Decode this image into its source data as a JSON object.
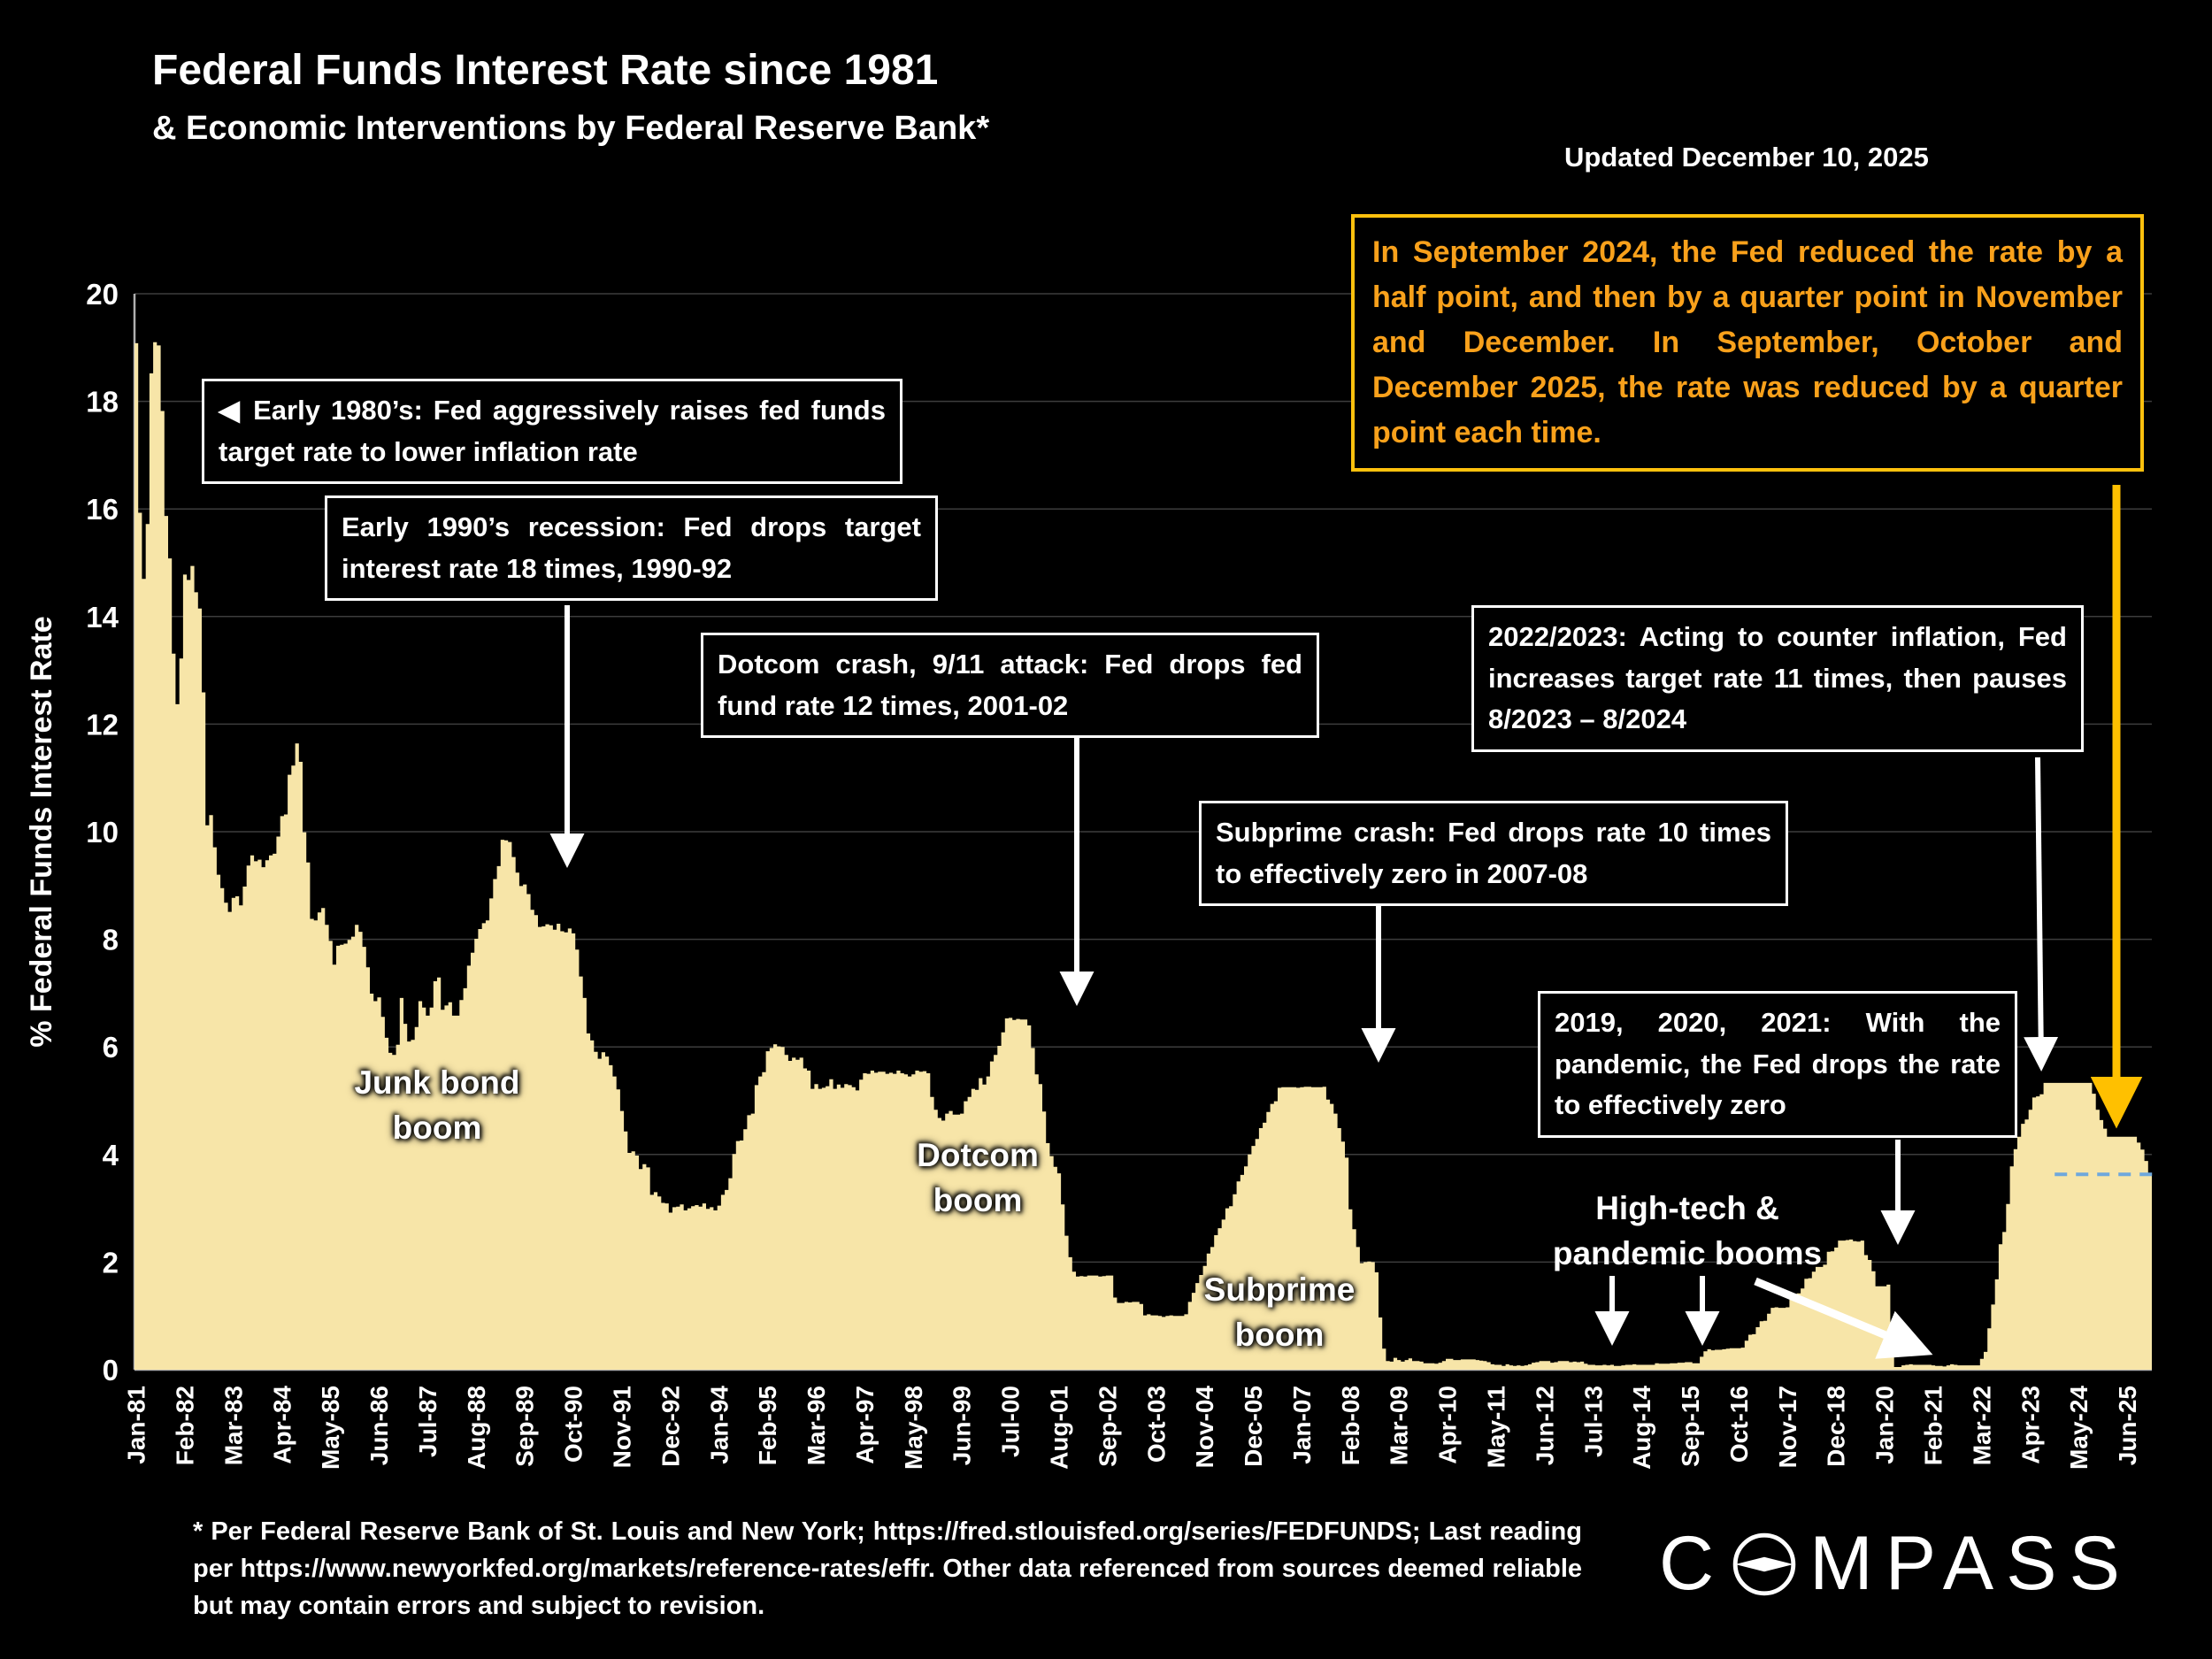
{
  "header": {
    "title": "Federal Funds Interest Rate since 1981",
    "subtitle": "& Economic Interventions by Federal Reserve Bank*",
    "updated": "Updated December 10, 2025"
  },
  "callout": {
    "text": "In September 2024, the Fed reduced the rate by a half point, and then by a quarter point in November and December. In September, October and December 2025, the rate was reduced by a quarter point each time."
  },
  "annotations": {
    "early80s": "◀ Early 1980’s: Fed aggressively raises fed funds target rate to lower inflation rate",
    "early90s": "Early 1990’s recession: Fed drops target interest rate 18 times, 1990-92",
    "dotcom_crash": "Dotcom crash, 9/11 attack: Fed drops fed fund rate 12 times, 2001-02",
    "inflation_2022": "2022/2023: Acting to counter inflation, Fed increases target rate 11 times, then pauses 8/2023 – 8/2024",
    "subprime_crash": "Subprime crash: Fed drops rate 10 times to effectively zero in 2007-08",
    "pandemic": "2019, 2020, 2021: With the pandemic, the Fed drops the rate to effectively zero"
  },
  "boom_labels": {
    "junk": [
      "Junk bond",
      "boom"
    ],
    "dotcom": [
      "Dotcom",
      "boom"
    ],
    "subprime": [
      "Subprime",
      "boom"
    ],
    "hightech": [
      "High-tech &",
      "pandemic booms"
    ]
  },
  "footer": {
    "disclaimer": "* Per Federal Reserve Bank of St. Louis and New York; https://fred.stlouisfed.org/series/FEDFUNDS; Last reading per https://www.newyorkfed.org/markets/reference-rates/effr. Other data referenced from sources deemed reliable but may contain errors and subject to revision."
  },
  "logo": {
    "name": "COMPASS",
    "pre": "C",
    "post": "MPASS"
  },
  "chart_data": {
    "type": "area",
    "title": "Federal Funds Interest Rate since 1981",
    "ylabel": "% Federal Funds Interest Rate",
    "ylim": [
      0,
      20
    ],
    "yticks": [
      0,
      2,
      4,
      6,
      8,
      10,
      12,
      14,
      16,
      18,
      20
    ],
    "x_start": "Jan-1981",
    "x_end": "Dec-2025",
    "frequency": "monthly",
    "grid": true,
    "xtick_labels": [
      "Jan-81",
      "Feb-82",
      "Mar-83",
      "Apr-84",
      "May-85",
      "Jun-86",
      "Jul-87",
      "Aug-88",
      "Sep-89",
      "Oct-90",
      "Nov-91",
      "Dec-92",
      "Jan-94",
      "Feb-95",
      "Mar-96",
      "Apr-97",
      "May-98",
      "Jun-99",
      "Jul-00",
      "Aug-01",
      "Sep-02",
      "Oct-03",
      "Nov-04",
      "Dec-05",
      "Jan-07",
      "Feb-08",
      "Mar-09",
      "Apr-10",
      "May-11",
      "Jun-12",
      "Jul-13",
      "Aug-14",
      "Sep-15",
      "Oct-16",
      "Nov-17",
      "Dec-18",
      "Jan-20",
      "Feb-21",
      "Mar-22",
      "Apr-23",
      "May-24",
      "Jun-25"
    ],
    "xtick_month_indices": [
      0,
      13,
      26,
      39,
      52,
      65,
      78,
      91,
      104,
      117,
      130,
      143,
      156,
      169,
      182,
      195,
      208,
      221,
      234,
      247,
      260,
      273,
      286,
      299,
      312,
      325,
      338,
      351,
      364,
      377,
      390,
      403,
      416,
      429,
      442,
      455,
      468,
      481,
      494,
      507,
      520,
      533
    ],
    "series": [
      {
        "name": "Federal Funds Effective Rate (%)",
        "values": [
          19.08,
          15.93,
          14.7,
          15.72,
          18.52,
          19.1,
          19.04,
          17.82,
          15.87,
          15.08,
          13.31,
          12.37,
          13.22,
          14.78,
          14.68,
          14.94,
          14.45,
          14.15,
          12.59,
          10.12,
          10.31,
          9.71,
          9.2,
          8.95,
          8.68,
          8.51,
          8.77,
          8.8,
          8.63,
          8.98,
          9.37,
          9.56,
          9.45,
          9.48,
          9.34,
          9.47,
          9.56,
          9.59,
          9.91,
          10.29,
          10.32,
          11.06,
          11.23,
          11.64,
          11.3,
          9.99,
          9.43,
          8.38,
          8.35,
          8.5,
          8.58,
          8.27,
          7.97,
          7.53,
          7.88,
          7.9,
          7.92,
          7.99,
          8.05,
          8.27,
          8.14,
          7.86,
          7.48,
          6.99,
          6.85,
          6.92,
          6.56,
          6.17,
          5.89,
          5.85,
          6.04,
          6.91,
          6.43,
          6.1,
          6.13,
          6.37,
          6.85,
          6.73,
          6.58,
          6.73,
          7.22,
          7.29,
          6.69,
          6.77,
          6.83,
          6.58,
          6.58,
          6.87,
          7.09,
          7.51,
          7.75,
          8.01,
          8.19,
          8.3,
          8.35,
          8.76,
          9.12,
          9.36,
          9.85,
          9.84,
          9.81,
          9.53,
          9.24,
          8.99,
          9.02,
          8.84,
          8.55,
          8.45,
          8.23,
          8.24,
          8.28,
          8.26,
          8.18,
          8.29,
          8.15,
          8.13,
          8.2,
          8.11,
          7.81,
          7.31,
          6.91,
          6.25,
          6.12,
          5.91,
          5.78,
          5.9,
          5.82,
          5.66,
          5.45,
          5.21,
          4.81,
          4.43,
          4.03,
          4.06,
          3.98,
          3.73,
          3.82,
          3.76,
          3.25,
          3.3,
          3.22,
          3.1,
          3.09,
          2.92,
          3.02,
          3.03,
          3.07,
          2.96,
          3.0,
          3.04,
          3.06,
          3.03,
          3.09,
          2.99,
          3.02,
          2.96,
          3.05,
          3.25,
          3.34,
          3.56,
          4.01,
          4.25,
          4.26,
          4.47,
          4.73,
          4.76,
          5.29,
          5.45,
          5.53,
          5.92,
          5.98,
          6.05,
          6.01,
          6.0,
          5.85,
          5.74,
          5.8,
          5.76,
          5.8,
          5.6,
          5.56,
          5.22,
          5.31,
          5.22,
          5.24,
          5.27,
          5.4,
          5.22,
          5.3,
          5.24,
          5.31,
          5.29,
          5.25,
          5.19,
          5.39,
          5.51,
          5.5,
          5.56,
          5.52,
          5.54,
          5.54,
          5.5,
          5.52,
          5.5,
          5.56,
          5.51,
          5.49,
          5.45,
          5.49,
          5.56,
          5.54,
          5.55,
          5.51,
          5.07,
          4.83,
          4.68,
          4.63,
          4.76,
          4.81,
          4.74,
          4.74,
          4.76,
          4.99,
          5.07,
          5.22,
          5.2,
          5.42,
          5.3,
          5.45,
          5.73,
          5.85,
          6.02,
          6.27,
          6.53,
          6.54,
          6.5,
          6.52,
          6.51,
          6.51,
          6.4,
          5.98,
          5.49,
          5.31,
          4.8,
          4.21,
          3.97,
          3.77,
          3.65,
          3.07,
          2.49,
          2.09,
          1.82,
          1.73,
          1.74,
          1.73,
          1.75,
          1.75,
          1.75,
          1.73,
          1.74,
          1.75,
          1.75,
          1.34,
          1.24,
          1.24,
          1.26,
          1.25,
          1.26,
          1.26,
          1.22,
          1.01,
          1.03,
          1.01,
          1.01,
          1.0,
          0.98,
          1.0,
          1.01,
          1.0,
          1.0,
          1.0,
          1.03,
          1.26,
          1.43,
          1.61,
          1.76,
          1.93,
          2.16,
          2.28,
          2.5,
          2.63,
          2.79,
          3.0,
          3.04,
          3.26,
          3.5,
          3.62,
          3.78,
          4.0,
          4.16,
          4.29,
          4.49,
          4.59,
          4.79,
          4.94,
          4.99,
          5.24,
          5.25,
          5.25,
          5.25,
          5.25,
          5.24,
          5.25,
          5.26,
          5.26,
          5.25,
          5.25,
          5.25,
          5.26,
          5.02,
          4.94,
          4.76,
          4.49,
          4.24,
          3.94,
          2.98,
          2.61,
          2.28,
          1.98,
          2.0,
          2.01,
          2.0,
          1.81,
          0.97,
          0.39,
          0.16,
          0.15,
          0.22,
          0.18,
          0.15,
          0.18,
          0.21,
          0.16,
          0.16,
          0.15,
          0.12,
          0.12,
          0.12,
          0.11,
          0.13,
          0.16,
          0.2,
          0.2,
          0.18,
          0.18,
          0.19,
          0.19,
          0.19,
          0.19,
          0.18,
          0.17,
          0.16,
          0.14,
          0.1,
          0.09,
          0.09,
          0.07,
          0.1,
          0.08,
          0.07,
          0.08,
          0.07,
          0.08,
          0.1,
          0.13,
          0.14,
          0.16,
          0.16,
          0.16,
          0.13,
          0.14,
          0.16,
          0.16,
          0.16,
          0.14,
          0.15,
          0.14,
          0.15,
          0.11,
          0.09,
          0.09,
          0.08,
          0.08,
          0.09,
          0.08,
          0.09,
          0.07,
          0.07,
          0.08,
          0.09,
          0.09,
          0.1,
          0.09,
          0.09,
          0.09,
          0.09,
          0.09,
          0.12,
          0.11,
          0.11,
          0.11,
          0.12,
          0.12,
          0.13,
          0.13,
          0.14,
          0.14,
          0.12,
          0.12,
          0.24,
          0.34,
          0.38,
          0.36,
          0.37,
          0.37,
          0.38,
          0.39,
          0.4,
          0.4,
          0.4,
          0.41,
          0.54,
          0.65,
          0.66,
          0.79,
          0.9,
          0.91,
          1.04,
          1.15,
          1.16,
          1.15,
          1.15,
          1.16,
          1.3,
          1.41,
          1.42,
          1.51,
          1.69,
          1.7,
          1.82,
          1.91,
          1.91,
          1.95,
          2.19,
          2.2,
          2.27,
          2.4,
          2.4,
          2.41,
          2.42,
          2.39,
          2.38,
          2.4,
          2.13,
          2.04,
          1.83,
          1.55,
          1.55,
          1.55,
          1.58,
          0.65,
          0.05,
          0.05,
          0.08,
          0.09,
          0.1,
          0.09,
          0.09,
          0.09,
          0.09,
          0.09,
          0.08,
          0.07,
          0.07,
          0.06,
          0.08,
          0.1,
          0.09,
          0.08,
          0.08,
          0.08,
          0.08,
          0.08,
          0.08,
          0.2,
          0.33,
          0.77,
          1.21,
          1.68,
          2.33,
          2.56,
          3.08,
          3.78,
          4.1,
          4.33,
          4.57,
          4.65,
          4.83,
          5.06,
          5.08,
          5.12,
          5.33,
          5.33,
          5.33,
          5.33,
          5.33,
          5.33,
          5.33,
          5.33,
          5.33,
          5.33,
          5.33,
          5.33,
          5.33,
          5.13,
          4.83,
          4.64,
          4.48,
          4.33,
          4.33,
          4.33,
          4.33,
          4.33,
          4.33,
          4.33,
          4.33,
          4.22,
          4.09,
          3.88,
          3.65
        ]
      }
    ],
    "dashed_reference": {
      "value": 3.63,
      "start_month_index": 514
    },
    "colors": {
      "background": "#000000",
      "area": "#F7E5A8",
      "accent_orange": "#FFC000",
      "callout_text": "#F9A11B",
      "dashed_line": "#6FA8DC",
      "gridline": "#3D3D3D"
    },
    "legend": "none"
  }
}
